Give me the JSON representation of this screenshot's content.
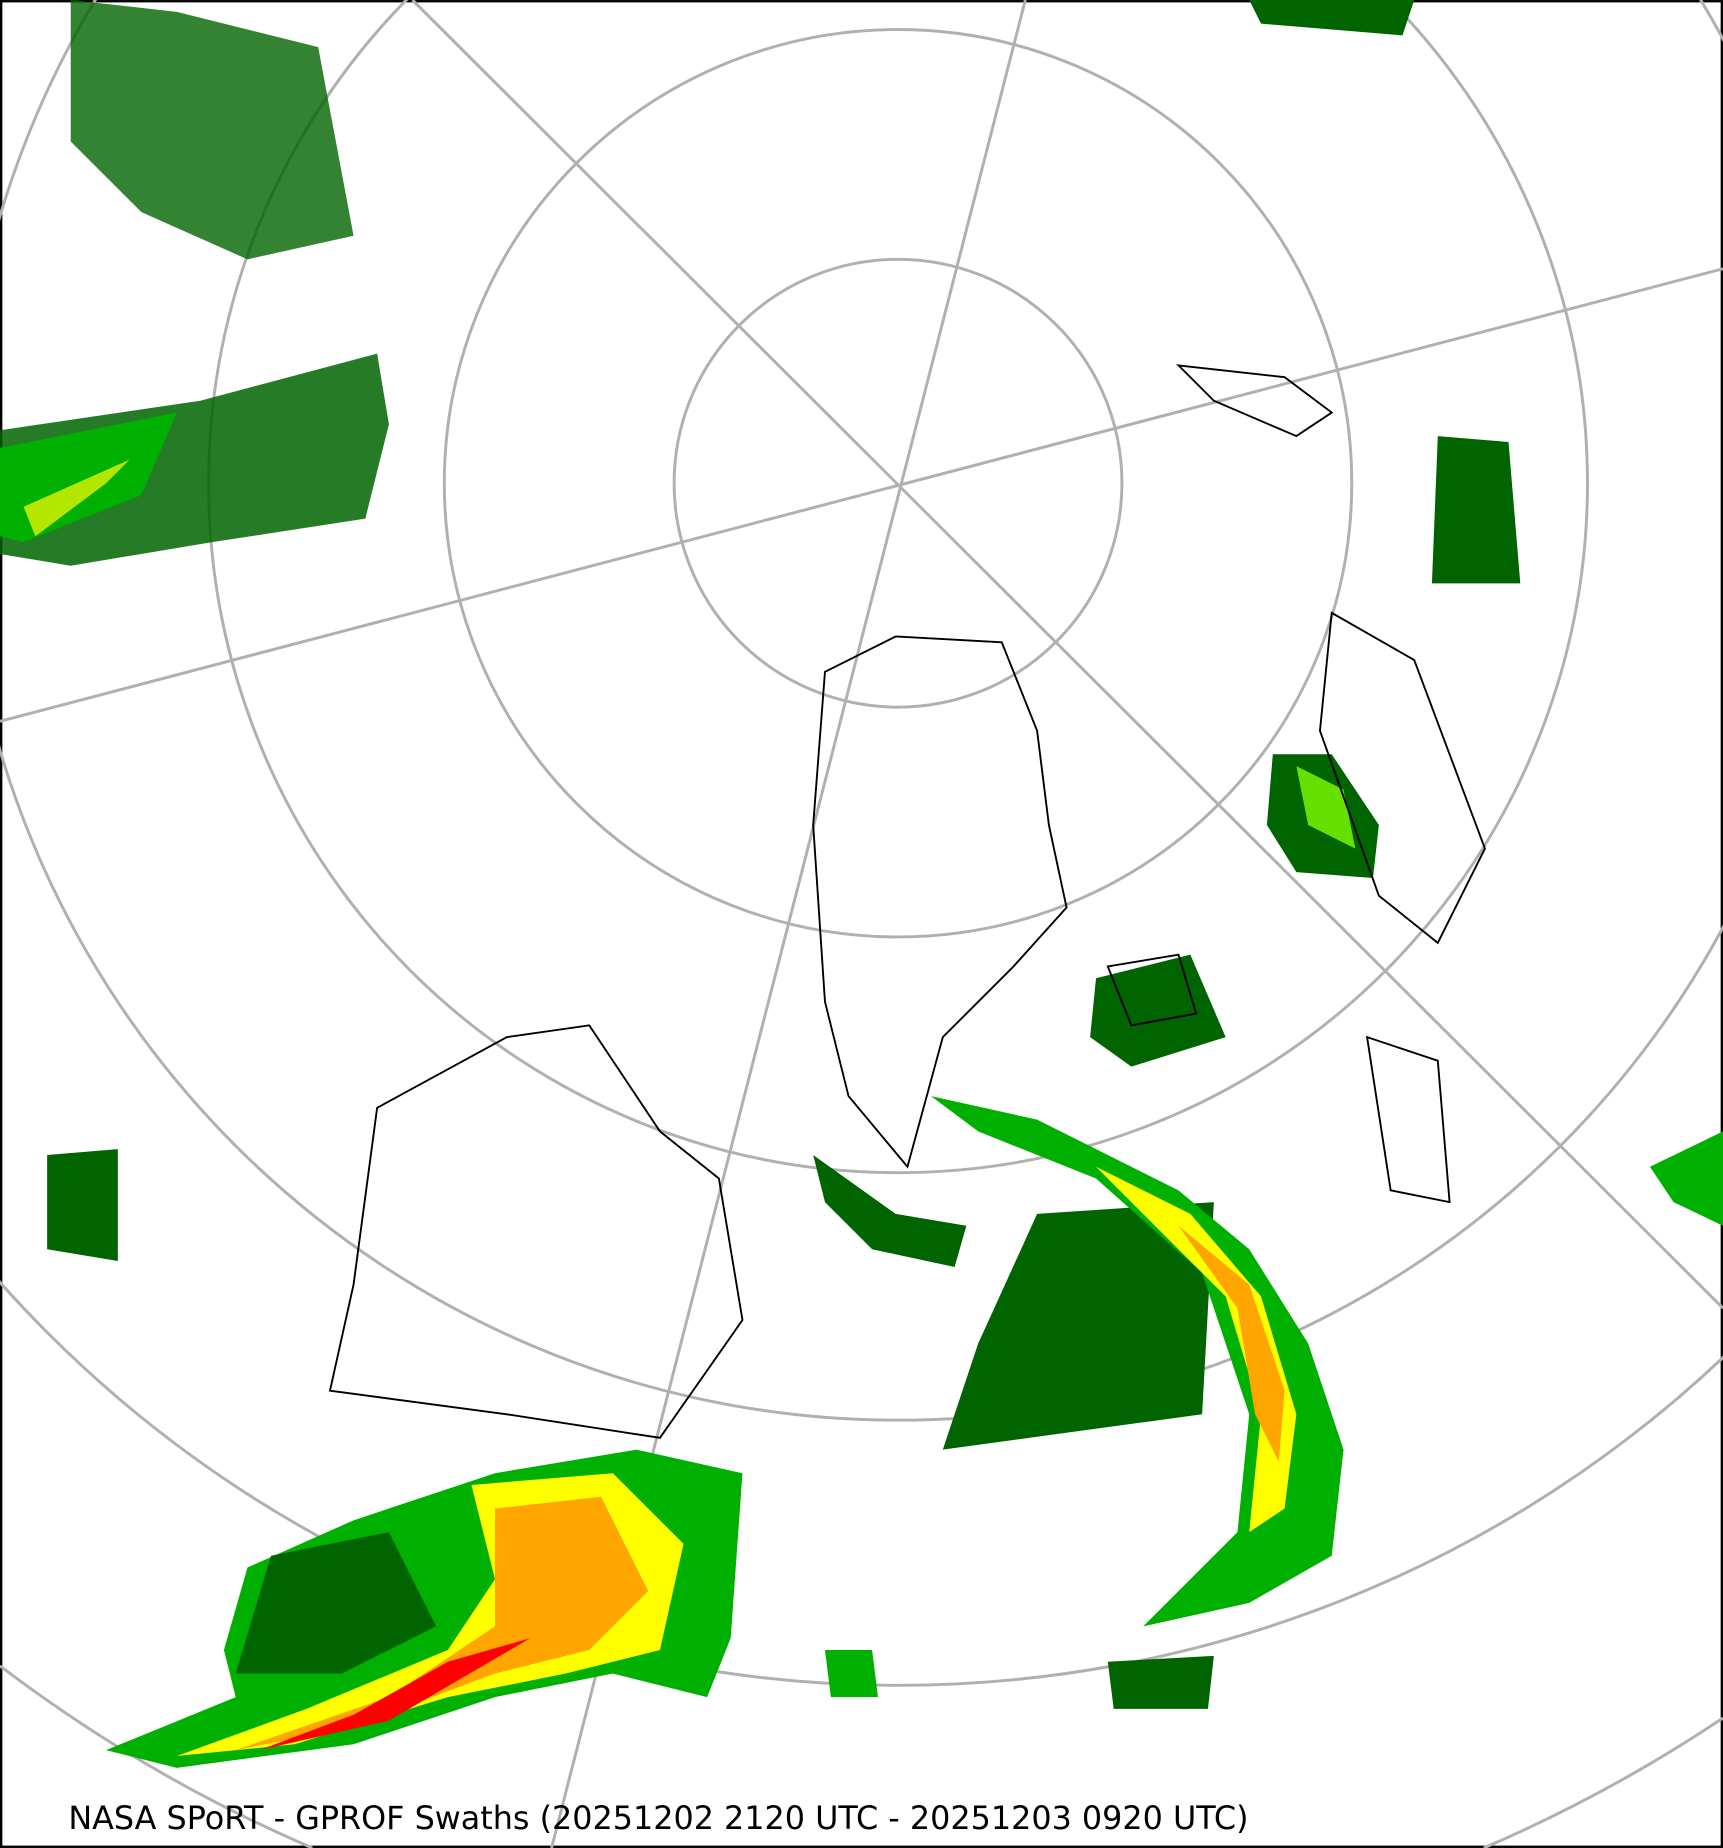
{
  "caption": "NASA SPoRT - GPROF Swaths (20251202 2120 UTC - 20251203 0920 UTC)",
  "projection": "north-polar-stereographic",
  "colors": {
    "light_precip": "#006400",
    "moderate_precip": "#00b000",
    "heavier_precip": "#7fff00",
    "heavy_precip": "#ffff00",
    "very_heavy_precip": "#ffa500",
    "extreme_precip": "#ff0000",
    "graticule": "#b0b0b0",
    "coastline": "#000000"
  }
}
